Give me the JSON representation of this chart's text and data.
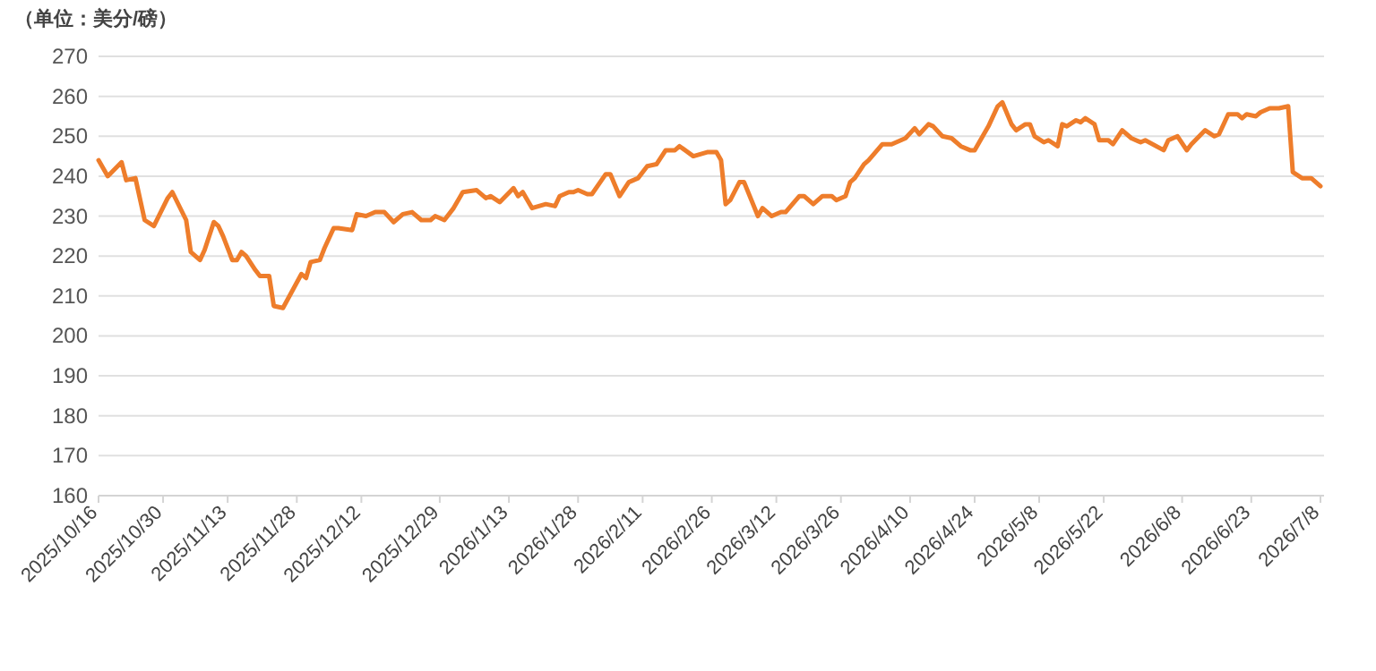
{
  "chart_data": {
    "type": "line",
    "ylabel": "（单位：美分/磅）",
    "x": [
      "2025-10-16",
      "2025-10-18",
      "2025-10-21",
      "2025-10-22",
      "2025-10-24",
      "2025-10-26",
      "2025-10-28",
      "2025-10-31",
      "2025-11-01",
      "2025-11-04",
      "2025-11-05",
      "2025-11-07",
      "2025-11-08",
      "2025-11-10",
      "2025-11-11",
      "2025-11-12",
      "2025-11-14",
      "2025-11-15",
      "2025-11-16",
      "2025-11-17",
      "2025-11-19",
      "2025-11-20",
      "2025-11-22",
      "2025-11-23",
      "2025-11-25",
      "2025-11-29",
      "2025-11-30",
      "2025-12-01",
      "2025-12-03",
      "2025-12-04",
      "2025-12-06",
      "2025-12-07",
      "2025-12-10",
      "2025-12-11",
      "2025-12-13",
      "2025-12-15",
      "2025-12-17",
      "2025-12-19",
      "2025-12-21",
      "2025-12-23",
      "2025-12-25",
      "2025-12-27",
      "2025-12-28",
      "2025-12-30",
      "2026-01-01",
      "2026-01-03",
      "2026-01-06",
      "2026-01-08",
      "2026-01-09",
      "2026-01-11",
      "2026-01-14",
      "2026-01-15",
      "2026-01-16",
      "2026-01-18",
      "2026-01-21",
      "2026-01-23",
      "2026-01-24",
      "2026-01-26",
      "2026-01-27",
      "2026-01-28",
      "2026-01-30",
      "2026-01-31",
      "2026-02-03",
      "2026-02-04",
      "2026-02-06",
      "2026-02-08",
      "2026-02-10",
      "2026-02-12",
      "2026-02-14",
      "2026-02-16",
      "2026-02-18",
      "2026-02-19",
      "2026-02-22",
      "2026-02-25",
      "2026-02-27",
      "2026-02-28",
      "2026-03-01",
      "2026-03-02",
      "2026-03-04",
      "2026-03-05",
      "2026-03-08",
      "2026-03-09",
      "2026-03-11",
      "2026-03-13",
      "2026-03-14",
      "2026-03-17",
      "2026-03-18",
      "2026-03-20",
      "2026-03-22",
      "2026-03-24",
      "2026-03-25",
      "2026-03-27",
      "2026-03-28",
      "2026-03-29",
      "2026-03-31",
      "2026-04-01",
      "2026-04-04",
      "2026-04-06",
      "2026-04-09",
      "2026-04-11",
      "2026-04-12",
      "2026-04-14",
      "2026-04-15",
      "2026-04-17",
      "2026-04-19",
      "2026-04-21",
      "2026-04-23",
      "2026-04-24",
      "2026-04-25",
      "2026-04-27",
      "2026-04-29",
      "2026-04-30",
      "2026-05-02",
      "2026-05-03",
      "2026-05-05",
      "2026-05-06",
      "2026-05-07",
      "2026-05-09",
      "2026-05-10",
      "2026-05-12",
      "2026-05-13",
      "2026-05-14",
      "2026-05-16",
      "2026-05-17",
      "2026-05-18",
      "2026-05-20",
      "2026-05-21",
      "2026-05-23",
      "2026-05-24",
      "2026-05-26",
      "2026-05-28",
      "2026-05-30",
      "2026-05-31",
      "2026-06-04",
      "2026-06-05",
      "2026-06-07",
      "2026-06-09",
      "2026-06-10",
      "2026-06-13",
      "2026-06-15",
      "2026-06-16",
      "2026-06-18",
      "2026-06-20",
      "2026-06-21",
      "2026-06-22",
      "2026-06-24",
      "2026-06-25",
      "2026-06-27",
      "2026-06-29",
      "2026-07-01",
      "2026-07-02",
      "2026-07-04",
      "2026-07-06",
      "2026-07-08"
    ],
    "series": [
      {
        "color": "#ee7d2b",
        "values": [
          244,
          240,
          243.5,
          239,
          239.5,
          229,
          227.5,
          234.5,
          236,
          229,
          221,
          219,
          221.5,
          228.5,
          227.5,
          225,
          219,
          219,
          221,
          220,
          216.5,
          215,
          215,
          207.5,
          207,
          215.5,
          214.5,
          218.5,
          219,
          222,
          227,
          227,
          226.5,
          230.5,
          230,
          231,
          231,
          228.5,
          230.5,
          231,
          229,
          229,
          230,
          229,
          232,
          236,
          236.5,
          234.5,
          235,
          233.5,
          237,
          235,
          236,
          232,
          233,
          232.5,
          235,
          236,
          236,
          236.5,
          235.5,
          235.5,
          240.5,
          240.5,
          235,
          238.5,
          239.5,
          242.5,
          243,
          246.5,
          246.5,
          247.5,
          245,
          246,
          246,
          244,
          233,
          234,
          238.5,
          238.5,
          230,
          232,
          230,
          231,
          231,
          235,
          235,
          233,
          235,
          235,
          234,
          235,
          238.5,
          239.5,
          243,
          244,
          248,
          248,
          249.5,
          252,
          250.5,
          253,
          252.5,
          250,
          249.5,
          247.5,
          246.5,
          246.5,
          248.5,
          252.5,
          257.5,
          258.5,
          253,
          251.5,
          253,
          253,
          250,
          248.5,
          249,
          247.5,
          253,
          252.5,
          254,
          253.5,
          254.5,
          253,
          249,
          249,
          248,
          251.5,
          249.5,
          248.5,
          249,
          246.5,
          249,
          250,
          246.5,
          248,
          251.5,
          250,
          250.5,
          255.5,
          255.5,
          254.5,
          255.5,
          255,
          256,
          257,
          257,
          257.5,
          241,
          239.5,
          239.5,
          237.5
        ]
      }
    ],
    "xlim": [
      "2025-10-16",
      "2026-07-08"
    ],
    "xticks": [
      {
        "value": "2025-10-16",
        "label": "2025/10/16"
      },
      {
        "value": "2025-10-30",
        "label": "2025/10/30"
      },
      {
        "value": "2025-11-13",
        "label": "2025/11/13"
      },
      {
        "value": "2025-11-28",
        "label": "2025/11/28"
      },
      {
        "value": "2025-12-12",
        "label": "2025/12/12"
      },
      {
        "value": "2025-12-29",
        "label": "2025/12/29"
      },
      {
        "value": "2026-01-13",
        "label": "2026/1/13"
      },
      {
        "value": "2026-01-28",
        "label": "2026/1/28"
      },
      {
        "value": "2026-02-11",
        "label": "2026/2/11"
      },
      {
        "value": "2026-02-26",
        "label": "2026/2/26"
      },
      {
        "value": "2026-03-12",
        "label": "2026/3/12"
      },
      {
        "value": "2026-03-26",
        "label": "2026/3/26"
      },
      {
        "value": "2026-04-10",
        "label": "2026/4/10"
      },
      {
        "value": "2026-04-24",
        "label": "2026/4/24"
      },
      {
        "value": "2026-05-08",
        "label": "2026/5/8"
      },
      {
        "value": "2026-05-22",
        "label": "2026/5/22"
      },
      {
        "value": "2026-06-08",
        "label": "2026/6/8"
      },
      {
        "value": "2026-06-23",
        "label": "2026/6/23"
      },
      {
        "value": "2026-07-08",
        "label": "2026/7/8"
      }
    ],
    "ylim": [
      160,
      270
    ],
    "yticks": [
      160,
      170,
      180,
      190,
      200,
      210,
      220,
      230,
      240,
      250,
      260,
      270
    ],
    "grid": "y",
    "marker": "none",
    "line_style": "solid"
  }
}
